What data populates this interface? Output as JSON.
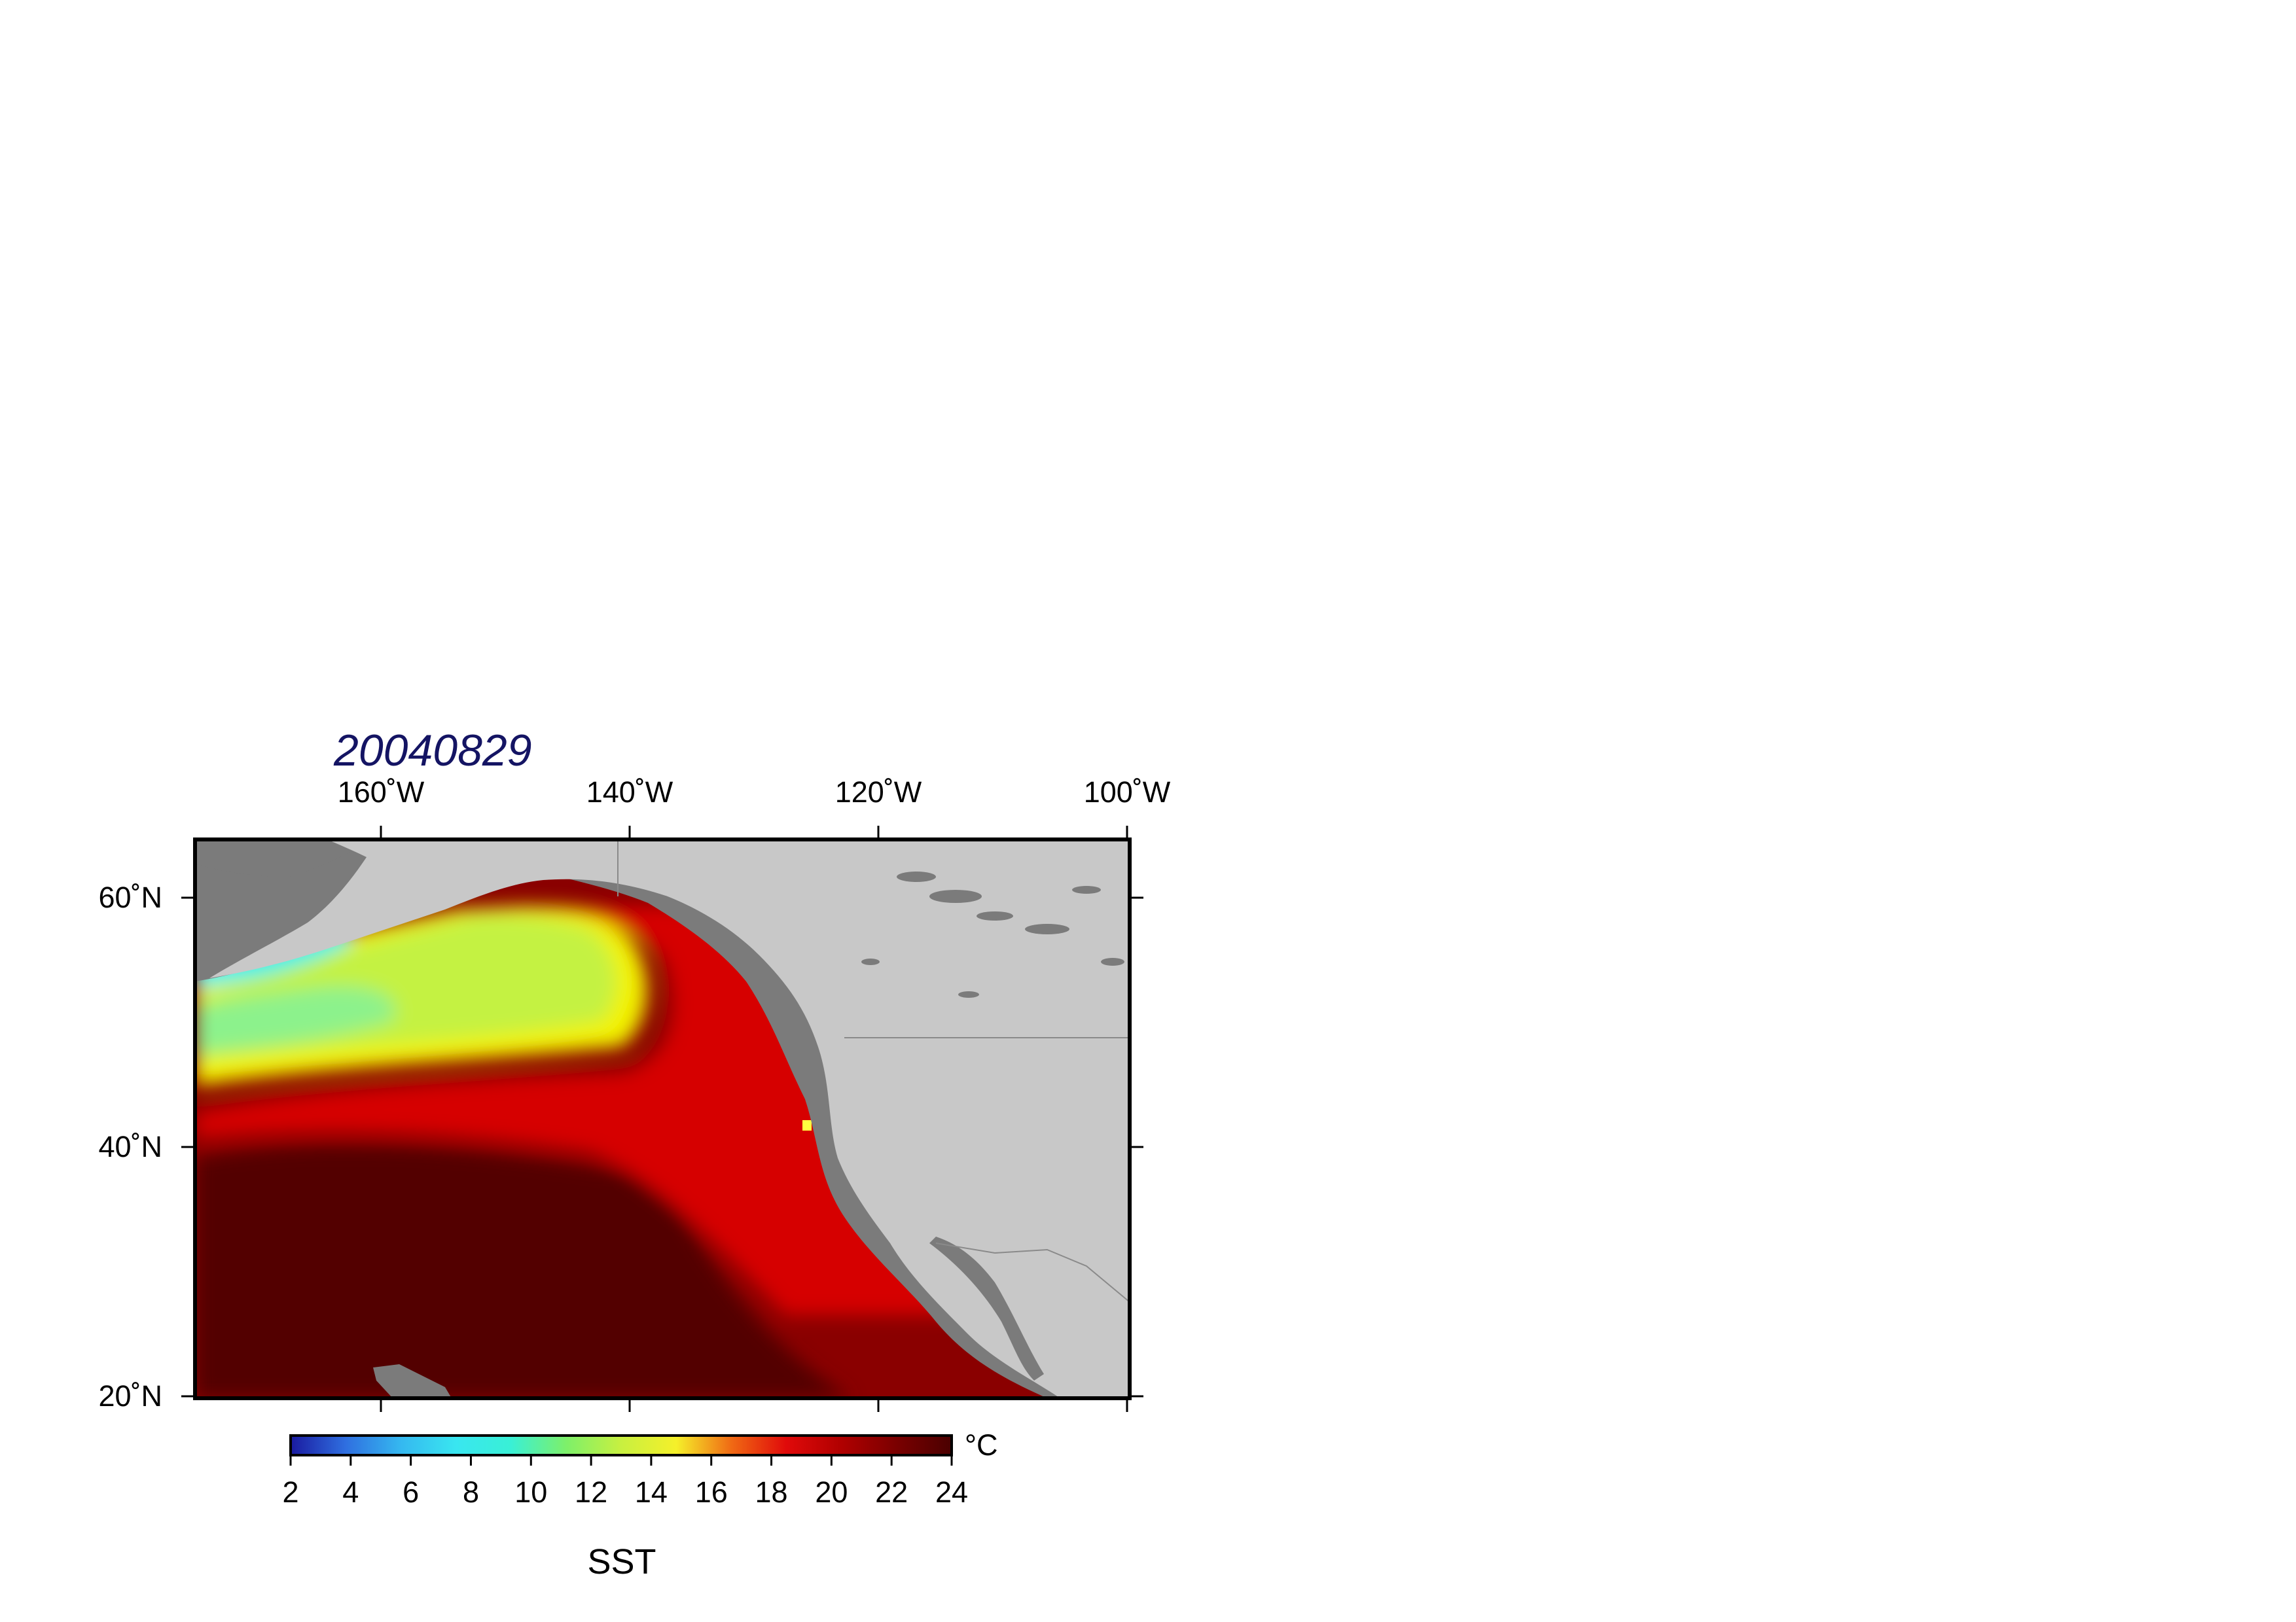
{
  "map": {
    "title": "20040829",
    "lon_ticks": [
      "160˚W",
      "140˚W",
      "120˚W",
      "100˚W"
    ],
    "lat_ticks": [
      "60˚N",
      "40˚N",
      "20˚N"
    ],
    "extent": {
      "lon_min": -175,
      "lon_max": -100,
      "lat_min": 20,
      "lat_max": 65
    },
    "colors": {
      "land": "#c8c8c8",
      "coast_shelf": "#7b7b7b",
      "frame": "#000000"
    },
    "variable": "SST"
  },
  "colorbar": {
    "ticks": [
      "2",
      "4",
      "6",
      "8",
      "10",
      "12",
      "14",
      "16",
      "18",
      "20",
      "22",
      "24"
    ],
    "unit": "°C",
    "label": "SST",
    "range": [
      2,
      24
    ],
    "stops": [
      "#1a1aa0",
      "#2f6fe0",
      "#35b8f0",
      "#39e6f0",
      "#39f0d6",
      "#7df06a",
      "#c8f040",
      "#f5f02a",
      "#f06a14",
      "#e00a0a",
      "#b00000",
      "#7a0000",
      "#4a0000"
    ]
  }
}
